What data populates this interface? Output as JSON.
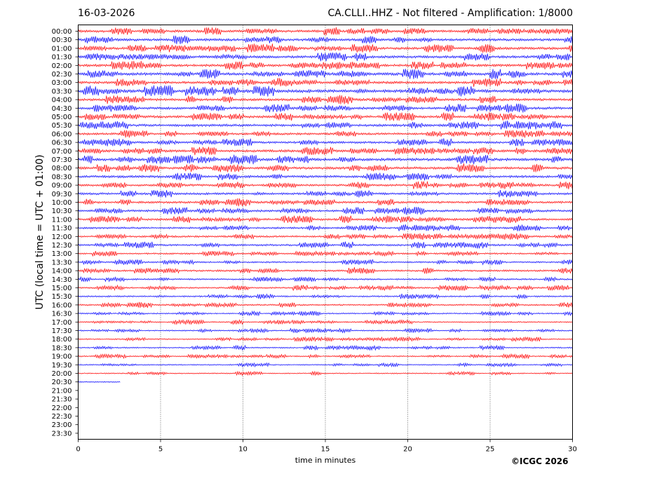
{
  "header": {
    "date": "16-03-2026",
    "station_info": "CA.CLLI..HHZ - Not filtered - Amplification: 1/8000"
  },
  "footer": {
    "copyright": "©ICGC 2026"
  },
  "chart_data": {
    "type": "line",
    "title": "CA.CLLI..HHZ - Not filtered - Amplification: 1/8000",
    "xlabel": "time in minutes",
    "ylabel": "UTC (local time = UTC + 01:00)",
    "xlim": [
      0,
      30
    ],
    "x_ticks": [
      "0",
      "5",
      "10",
      "15",
      "20",
      "25",
      "30"
    ],
    "grid": "vertical dotted lines at 5-minute intervals",
    "rows": [
      {
        "label": "00:00",
        "color": "#ff0000",
        "amplitude": 0.8,
        "span_minutes": 30
      },
      {
        "label": "00:30",
        "color": "#0000ff",
        "amplitude": 0.8,
        "span_minutes": 30
      },
      {
        "label": "01:00",
        "color": "#ff0000",
        "amplitude": 0.8,
        "span_minutes": 30
      },
      {
        "label": "01:30",
        "color": "#0000ff",
        "amplitude": 0.8,
        "span_minutes": 30
      },
      {
        "label": "02:00",
        "color": "#ff0000",
        "amplitude": 0.8,
        "span_minutes": 30
      },
      {
        "label": "02:30",
        "color": "#0000ff",
        "amplitude": 0.9,
        "span_minutes": 30
      },
      {
        "label": "03:00",
        "color": "#ff0000",
        "amplitude": 0.8,
        "span_minutes": 30
      },
      {
        "label": "03:30",
        "color": "#0000ff",
        "amplitude": 1.0,
        "span_minutes": 30
      },
      {
        "label": "04:00",
        "color": "#ff0000",
        "amplitude": 0.8,
        "span_minutes": 30
      },
      {
        "label": "04:30",
        "color": "#0000ff",
        "amplitude": 0.8,
        "span_minutes": 30
      },
      {
        "label": "05:00",
        "color": "#ff0000",
        "amplitude": 0.8,
        "span_minutes": 30
      },
      {
        "label": "05:30",
        "color": "#0000ff",
        "amplitude": 0.8,
        "span_minutes": 30
      },
      {
        "label": "06:00",
        "color": "#ff0000",
        "amplitude": 0.7,
        "span_minutes": 30
      },
      {
        "label": "06:30",
        "color": "#0000ff",
        "amplitude": 0.7,
        "span_minutes": 30
      },
      {
        "label": "07:00",
        "color": "#ff0000",
        "amplitude": 0.8,
        "span_minutes": 30
      },
      {
        "label": "07:30",
        "color": "#0000ff",
        "amplitude": 0.9,
        "span_minutes": 30
      },
      {
        "label": "08:00",
        "color": "#ff0000",
        "amplitude": 0.8,
        "span_minutes": 30
      },
      {
        "label": "08:30",
        "color": "#0000ff",
        "amplitude": 0.8,
        "span_minutes": 30
      },
      {
        "label": "09:00",
        "color": "#ff0000",
        "amplitude": 0.7,
        "span_minutes": 30
      },
      {
        "label": "09:30",
        "color": "#0000ff",
        "amplitude": 0.7,
        "span_minutes": 30
      },
      {
        "label": "10:00",
        "color": "#ff0000",
        "amplitude": 0.7,
        "span_minutes": 30
      },
      {
        "label": "10:30",
        "color": "#0000ff",
        "amplitude": 0.7,
        "span_minutes": 30
      },
      {
        "label": "11:00",
        "color": "#ff0000",
        "amplitude": 0.7,
        "span_minutes": 30
      },
      {
        "label": "11:30",
        "color": "#0000ff",
        "amplitude": 0.6,
        "span_minutes": 30
      },
      {
        "label": "12:00",
        "color": "#ff0000",
        "amplitude": 0.6,
        "span_minutes": 30
      },
      {
        "label": "12:30",
        "color": "#0000ff",
        "amplitude": 0.6,
        "span_minutes": 30
      },
      {
        "label": "13:00",
        "color": "#ff0000",
        "amplitude": 0.5,
        "span_minutes": 30
      },
      {
        "label": "13:30",
        "color": "#0000ff",
        "amplitude": 0.5,
        "span_minutes": 30
      },
      {
        "label": "14:00",
        "color": "#ff0000",
        "amplitude": 0.6,
        "span_minutes": 30
      },
      {
        "label": "14:30",
        "color": "#0000ff",
        "amplitude": 0.5,
        "span_minutes": 30
      },
      {
        "label": "15:00",
        "color": "#ff0000",
        "amplitude": 0.5,
        "span_minutes": 30
      },
      {
        "label": "15:30",
        "color": "#0000ff",
        "amplitude": 0.5,
        "span_minutes": 30
      },
      {
        "label": "16:00",
        "color": "#ff0000",
        "amplitude": 0.5,
        "span_minutes": 30
      },
      {
        "label": "16:30",
        "color": "#0000ff",
        "amplitude": 0.4,
        "span_minutes": 30
      },
      {
        "label": "17:00",
        "color": "#ff0000",
        "amplitude": 0.4,
        "span_minutes": 30
      },
      {
        "label": "17:30",
        "color": "#0000ff",
        "amplitude": 0.4,
        "span_minutes": 30
      },
      {
        "label": "18:00",
        "color": "#ff0000",
        "amplitude": 0.4,
        "span_minutes": 30
      },
      {
        "label": "18:30",
        "color": "#0000ff",
        "amplitude": 0.4,
        "span_minutes": 30
      },
      {
        "label": "19:00",
        "color": "#ff0000",
        "amplitude": 0.4,
        "span_minutes": 30
      },
      {
        "label": "19:30",
        "color": "#0000ff",
        "amplitude": 0.35,
        "span_minutes": 30
      },
      {
        "label": "20:00",
        "color": "#ff0000",
        "amplitude": 0.35,
        "span_minutes": 30
      },
      {
        "label": "20:30",
        "color": "#0000ff",
        "amplitude": 0.35,
        "span_minutes": 2.6
      },
      {
        "label": "21:00",
        "color": "#ff0000",
        "amplitude": 0,
        "span_minutes": 0
      },
      {
        "label": "21:30",
        "color": "#0000ff",
        "amplitude": 0,
        "span_minutes": 0
      },
      {
        "label": "22:00",
        "color": "#ff0000",
        "amplitude": 0,
        "span_minutes": 0
      },
      {
        "label": "22:30",
        "color": "#0000ff",
        "amplitude": 0,
        "span_minutes": 0
      },
      {
        "label": "23:00",
        "color": "#ff0000",
        "amplitude": 0,
        "span_minutes": 0
      },
      {
        "label": "23:30",
        "color": "#0000ff",
        "amplitude": 0,
        "span_minutes": 0
      }
    ]
  }
}
